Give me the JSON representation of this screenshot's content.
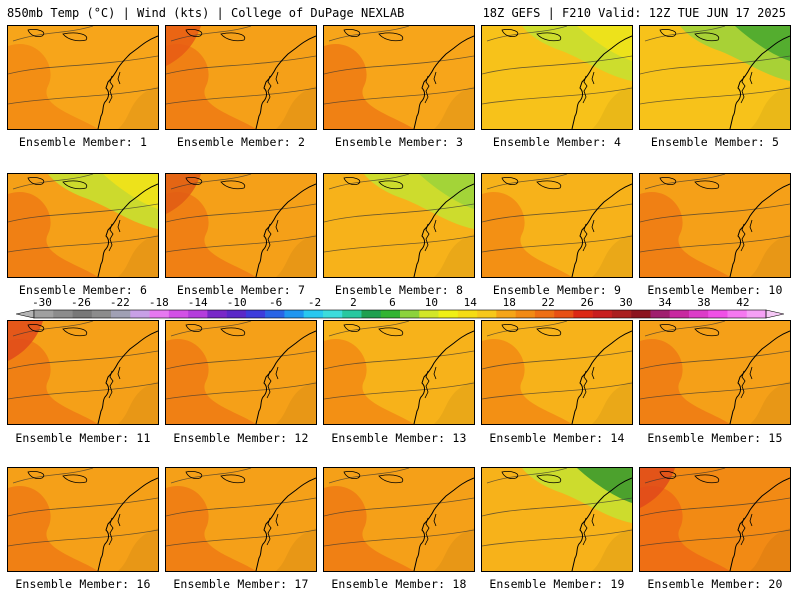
{
  "header": {
    "left": "850mb Temp (°C) | Wind (kts) | College of DuPage NEXLAB",
    "right": "18Z GEFS | F210 Valid: 12Z TUE JUN 17 2025"
  },
  "panel_label_prefix": "Ensemble Member:",
  "members": [
    {
      "label": "Ensemble Member: 1",
      "base": "#f7a51a",
      "hot": [
        "#f28a14"
      ],
      "cool": []
    },
    {
      "label": "Ensemble Member: 2",
      "base": "#f5a018",
      "hot": [
        "#ee7a14",
        "#e85a14"
      ],
      "cool": []
    },
    {
      "label": "Ensemble Member: 3",
      "base": "#f7a51a",
      "hot": [
        "#ee7a14"
      ],
      "cool": []
    },
    {
      "label": "Ensemble Member: 4",
      "base": "#f7c21a",
      "hot": [],
      "cool": [
        "#c8e030",
        "#f1e21a"
      ]
    },
    {
      "label": "Ensemble Member: 5",
      "base": "#f7c21a",
      "hot": [],
      "cool": [
        "#9fd33a",
        "#4aa82f"
      ]
    },
    {
      "label": "Ensemble Member: 6",
      "base": "#f5a018",
      "hot": [
        "#ee7a14"
      ],
      "cool": [
        "#c8e030",
        "#f1e21a"
      ]
    },
    {
      "label": "Ensemble Member: 7",
      "base": "#f5a018",
      "hot": [
        "#ee7a14",
        "#e05a14"
      ],
      "cool": []
    },
    {
      "label": "Ensemble Member: 8",
      "base": "#f7b21a",
      "hot": [],
      "cool": [
        "#c8e030",
        "#9fd33a"
      ]
    },
    {
      "label": "Ensemble Member: 9",
      "base": "#f7b21a",
      "hot": [
        "#f28a14"
      ],
      "cool": []
    },
    {
      "label": "Ensemble Member: 10",
      "base": "#f5a018",
      "hot": [
        "#ee7a14"
      ],
      "cool": []
    },
    {
      "label": "Ensemble Member: 11",
      "base": "#f5a018",
      "hot": [
        "#ee7a14",
        "#e04a1a"
      ],
      "cool": []
    },
    {
      "label": "Ensemble Member: 12",
      "base": "#f5a018",
      "hot": [
        "#ee7a14"
      ],
      "cool": []
    },
    {
      "label": "Ensemble Member: 13",
      "base": "#f7b21a",
      "hot": [
        "#f28a14"
      ],
      "cool": []
    },
    {
      "label": "Ensemble Member: 14",
      "base": "#f7b21a",
      "hot": [
        "#f28a14"
      ],
      "cool": []
    },
    {
      "label": "Ensemble Member: 15",
      "base": "#f5a018",
      "hot": [
        "#ee7a14"
      ],
      "cool": []
    },
    {
      "label": "Ensemble Member: 16",
      "base": "#f5a018",
      "hot": [
        "#ee7a14"
      ],
      "cool": []
    },
    {
      "label": "Ensemble Member: 17",
      "base": "#f5a018",
      "hot": [
        "#ee7a14"
      ],
      "cool": []
    },
    {
      "label": "Ensemble Member: 18",
      "base": "#f5a018",
      "hot": [
        "#ee7a14"
      ],
      "cool": []
    },
    {
      "label": "Ensemble Member: 19",
      "base": "#f7b21a",
      "hot": [],
      "cool": [
        "#c8e030",
        "#3e9a2e"
      ]
    },
    {
      "label": "Ensemble Member: 20",
      "base": "#f28a14",
      "hot": [
        "#ee6a14",
        "#e04a1a"
      ],
      "cool": []
    }
  ],
  "colorbar": {
    "labels": [
      "-30",
      "-26",
      "-22",
      "-18",
      "-14",
      "-10",
      "-6",
      "-2",
      "2",
      "6",
      "10",
      "14",
      "18",
      "22",
      "26",
      "30",
      "34",
      "38",
      "42"
    ],
    "colors": [
      "#a0a0a0",
      "#8c8c8c",
      "#787878",
      "#8c8c8c",
      "#a0a0b4",
      "#c8a0e6",
      "#e678f0",
      "#d250e6",
      "#b43cdc",
      "#7828c8",
      "#5a28c8",
      "#3c3cdc",
      "#2864e6",
      "#1e96f0",
      "#28c8f0",
      "#3cdcdc",
      "#28c8a0",
      "#1ea050",
      "#32b432",
      "#8cd23c",
      "#d2e628",
      "#f0f014",
      "#f5dc14",
      "#f7c81a",
      "#f5a518",
      "#f28a14",
      "#ee6e14",
      "#e85014",
      "#dc2814",
      "#c81e1e",
      "#aa1e1e",
      "#8c141e",
      "#a01e6e",
      "#c828a0",
      "#dc3cc8",
      "#f050e6",
      "#f578f0",
      "#f5a0f5"
    ]
  }
}
